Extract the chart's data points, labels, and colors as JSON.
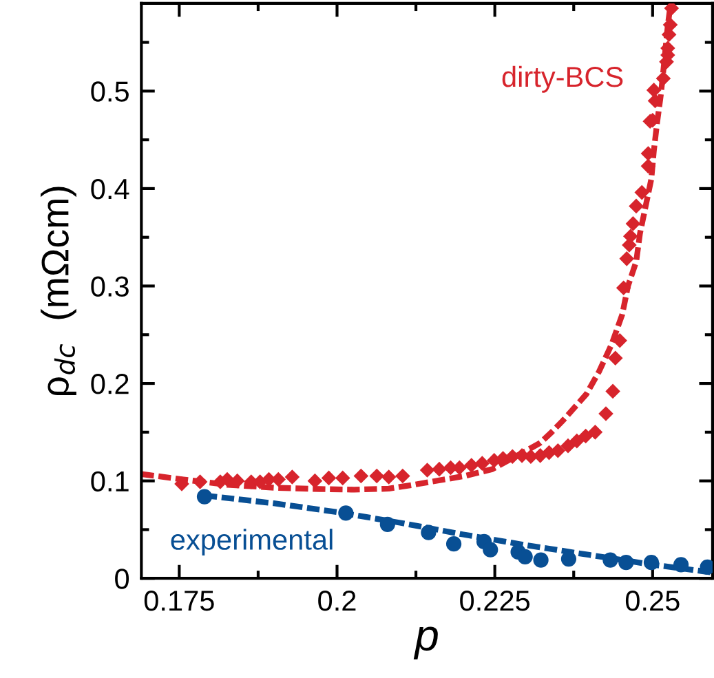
{
  "chart_data": {
    "type": "scatter",
    "xlabel": "p",
    "ylabel": "ρ$_{dc}$  (mΩcm)",
    "xlim": [
      0.169,
      0.2595
    ],
    "xticks": [
      0.175,
      0.2,
      0.225,
      0.25
    ],
    "ylim": [
      0,
      0.59
    ],
    "yticks": [
      0,
      0.1,
      0.2,
      0.3,
      0.4,
      0.5
    ],
    "grid": false,
    "legend": false,
    "series": [
      {
        "name": "dirty-BCS",
        "marker": "diamond",
        "color": "#d7242c",
        "x": [
          0.1754,
          0.1783,
          0.1815,
          0.1826,
          0.1842,
          0.1864,
          0.1878,
          0.1892,
          0.1907,
          0.1929,
          0.1965,
          0.1987,
          0.2009,
          0.2038,
          0.2063,
          0.2082,
          0.2104,
          0.2143,
          0.2162,
          0.218,
          0.2194,
          0.2213,
          0.223,
          0.2249,
          0.2263,
          0.2278,
          0.2293,
          0.2307,
          0.2322,
          0.2336,
          0.235,
          0.2366,
          0.238,
          0.2394,
          0.2409,
          0.2426,
          0.2437,
          0.2441,
          0.2448,
          0.2454,
          0.2459,
          0.2463,
          0.2465,
          0.2469,
          0.2474,
          0.2483,
          0.2493,
          0.2493,
          0.2496,
          0.25,
          0.2504,
          0.2502,
          0.2517,
          0.2522,
          0.2524,
          0.2524,
          0.2526,
          0.2528,
          0.253
        ],
        "values": [
          0.097,
          0.099,
          0.099,
          0.1015,
          0.1,
          0.099,
          0.099,
          0.1015,
          0.1015,
          0.104,
          0.1,
          0.103,
          0.103,
          0.105,
          0.105,
          0.104,
          0.105,
          0.111,
          0.112,
          0.1135,
          0.1135,
          0.116,
          0.118,
          0.121,
          0.123,
          0.125,
          0.126,
          0.125,
          0.126,
          0.129,
          0.131,
          0.136,
          0.141,
          0.146,
          0.15,
          0.169,
          0.192,
          0.226,
          0.244,
          0.298,
          0.328,
          0.342,
          0.351,
          0.364,
          0.382,
          0.396,
          0.423,
          0.436,
          0.469,
          0.47,
          0.49,
          0.501,
          0.513,
          0.53,
          0.537,
          0.544,
          0.558,
          0.568,
          0.585
        ]
      },
      {
        "type": "line",
        "line_style": "dashed",
        "marker": "none",
        "color": "#d7242c",
        "x": [
          0.169,
          0.1754,
          0.1826,
          0.19,
          0.1973,
          0.2027,
          0.2082,
          0.2121,
          0.2202,
          0.2246,
          0.23,
          0.2322,
          0.234,
          0.2358,
          0.2395,
          0.2415,
          0.2435,
          0.2452,
          0.2461,
          0.2474,
          0.248,
          0.2489,
          0.2498,
          0.2502,
          0.2507,
          0.2513,
          0.2517,
          0.2524,
          0.2528
        ],
        "values": [
          0.107,
          0.1016,
          0.096,
          0.093,
          0.0916,
          0.091,
          0.092,
          0.096,
          0.105,
          0.112,
          0.131,
          0.139,
          0.15,
          0.162,
          0.189,
          0.212,
          0.24,
          0.271,
          0.3,
          0.325,
          0.354,
          0.382,
          0.41,
          0.439,
          0.467,
          0.496,
          0.521,
          0.567,
          0.587
        ]
      },
      {
        "name": "experimental",
        "marker": "circle",
        "color": "#084f94",
        "x": [
          0.179,
          0.2014,
          0.208,
          0.2145,
          0.2185,
          0.2233,
          0.2243,
          0.2287,
          0.2298,
          0.2323,
          0.2367,
          0.2433,
          0.2458,
          0.2498,
          0.2545,
          0.2587
        ],
        "values": [
          0.0838,
          0.067,
          0.0554,
          0.047,
          0.0353,
          0.0376,
          0.0293,
          0.027,
          0.0222,
          0.0187,
          0.0199,
          0.0187,
          0.0163,
          0.0163,
          0.014,
          0.0116
        ]
      },
      {
        "type": "line",
        "line_style": "dashed",
        "marker": "none",
        "color": "#084f94",
        "x": [
          0.179,
          0.19,
          0.2,
          0.21,
          0.22,
          0.23,
          0.24,
          0.25,
          0.2595
        ],
        "values": [
          0.085,
          0.077,
          0.068,
          0.057,
          0.045,
          0.034,
          0.024,
          0.014,
          0.006
        ]
      }
    ]
  }
}
